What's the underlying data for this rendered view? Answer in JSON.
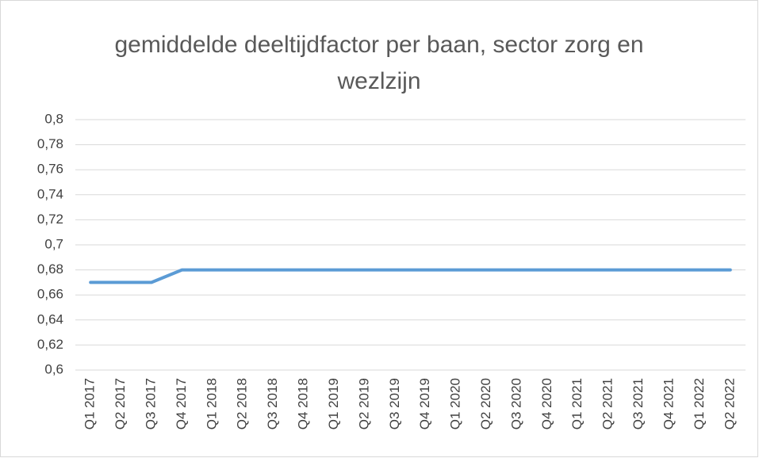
{
  "chart_data": {
    "type": "line",
    "title": "gemiddelde deeltijdfactor per baan, sector zorg en wezlzijn",
    "categories": [
      "Q1 2017",
      "Q2 2017",
      "Q3 2017",
      "Q4 2017",
      "Q1 2018",
      "Q2 2018",
      "Q3 2018",
      "Q4 2018",
      "Q1 2019",
      "Q2 2019",
      "Q3 2019",
      "Q4 2019",
      "Q1 2020",
      "Q2 2020",
      "Q3 2020",
      "Q4 2020",
      "Q1 2021",
      "Q2 2021",
      "Q3 2021",
      "Q4 2021",
      "Q1 2022",
      "Q2 2022"
    ],
    "values": [
      0.67,
      0.67,
      0.67,
      0.68,
      0.68,
      0.68,
      0.68,
      0.68,
      0.68,
      0.68,
      0.68,
      0.68,
      0.68,
      0.68,
      0.68,
      0.68,
      0.68,
      0.68,
      0.68,
      0.68,
      0.68,
      0.68
    ],
    "color": "#5b9bd5",
    "ylim": [
      0.6,
      0.8
    ],
    "yticks": [
      {
        "value": 0.6,
        "label": "0,6"
      },
      {
        "value": 0.62,
        "label": "0,62"
      },
      {
        "value": 0.64,
        "label": "0,64"
      },
      {
        "value": 0.66,
        "label": "0,66"
      },
      {
        "value": 0.68,
        "label": "0,68"
      },
      {
        "value": 0.7,
        "label": "0,7"
      },
      {
        "value": 0.72,
        "label": "0,72"
      },
      {
        "value": 0.74,
        "label": "0,74"
      },
      {
        "value": 0.76,
        "label": "0,76"
      },
      {
        "value": 0.78,
        "label": "0,78"
      },
      {
        "value": 0.8,
        "label": "0,8"
      }
    ],
    "grid": true
  }
}
